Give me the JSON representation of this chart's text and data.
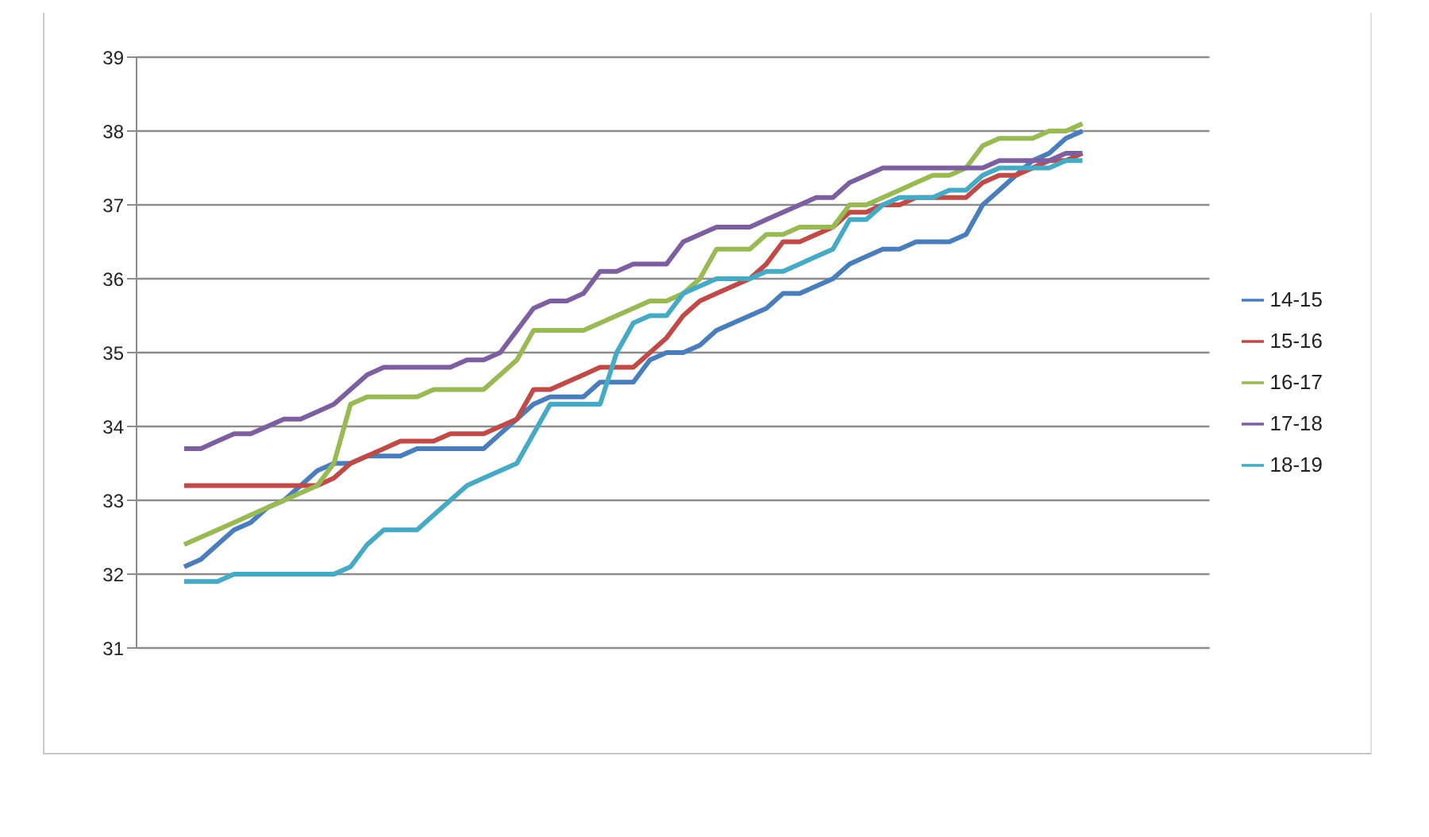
{
  "chart_data": {
    "type": "line",
    "categories": [
      null,
      null,
      null,
      null,
      null,
      null,
      null,
      null,
      null,
      null,
      null,
      null,
      null,
      null,
      null,
      null,
      null,
      null,
      null,
      null,
      null,
      null,
      null,
      null,
      null,
      null,
      null,
      null,
      null,
      null,
      null,
      null,
      null,
      null,
      null,
      null,
      null,
      null,
      null,
      null,
      null,
      null,
      null,
      null,
      null,
      null,
      null,
      null,
      null,
      null,
      null,
      null,
      null,
      null,
      null
    ],
    "series": [
      {
        "name": "14-15",
        "color": "#4a7ebb",
        "values": [
          32.1,
          32.2,
          32.4,
          32.6,
          32.7,
          32.9,
          33.0,
          33.2,
          33.4,
          33.5,
          33.5,
          33.6,
          33.6,
          33.6,
          33.7,
          33.7,
          33.7,
          33.7,
          33.7,
          33.9,
          34.1,
          34.3,
          34.4,
          34.4,
          34.4,
          34.6,
          34.6,
          34.6,
          34.9,
          35.0,
          35.0,
          35.1,
          35.3,
          35.4,
          35.5,
          35.6,
          35.8,
          35.8,
          35.9,
          36.0,
          36.2,
          36.3,
          36.4,
          36.4,
          36.5,
          36.5,
          36.5,
          36.6,
          37.0,
          37.2,
          37.4,
          37.6,
          37.7,
          37.9,
          38.0
        ]
      },
      {
        "name": "15-16",
        "color": "#be4b48",
        "values": [
          33.2,
          33.2,
          33.2,
          33.2,
          33.2,
          33.2,
          33.2,
          33.2,
          33.2,
          33.3,
          33.5,
          33.6,
          33.7,
          33.8,
          33.8,
          33.8,
          33.9,
          33.9,
          33.9,
          34.0,
          34.1,
          34.5,
          34.5,
          34.6,
          34.7,
          34.8,
          34.8,
          34.8,
          35.0,
          35.2,
          35.5,
          35.7,
          35.8,
          35.9,
          36.0,
          36.2,
          36.5,
          36.5,
          36.6,
          36.7,
          36.9,
          36.9,
          37.0,
          37.0,
          37.1,
          37.1,
          37.1,
          37.1,
          37.3,
          37.4,
          37.4,
          37.5,
          37.6,
          37.6,
          37.7
        ]
      },
      {
        "name": "16-17",
        "color": "#98b954",
        "values": [
          32.4,
          32.5,
          32.6,
          32.7,
          32.8,
          32.9,
          33.0,
          33.1,
          33.2,
          33.5,
          34.3,
          34.4,
          34.4,
          34.4,
          34.4,
          34.5,
          34.5,
          34.5,
          34.5,
          34.7,
          34.9,
          35.3,
          35.3,
          35.3,
          35.3,
          35.4,
          35.5,
          35.6,
          35.7,
          35.7,
          35.8,
          36.0,
          36.4,
          36.4,
          36.4,
          36.6,
          36.6,
          36.7,
          36.7,
          36.7,
          37.0,
          37.0,
          37.1,
          37.2,
          37.3,
          37.4,
          37.4,
          37.5,
          37.8,
          37.9,
          37.9,
          37.9,
          38.0,
          38.0,
          38.1
        ]
      },
      {
        "name": "17-18",
        "color": "#7d5fa0",
        "values": [
          33.7,
          33.7,
          33.8,
          33.9,
          33.9,
          34.0,
          34.1,
          34.1,
          34.2,
          34.3,
          34.5,
          34.7,
          34.8,
          34.8,
          34.8,
          34.8,
          34.8,
          34.9,
          34.9,
          35.0,
          35.3,
          35.6,
          35.7,
          35.7,
          35.8,
          36.1,
          36.1,
          36.2,
          36.2,
          36.2,
          36.5,
          36.6,
          36.7,
          36.7,
          36.7,
          36.8,
          36.9,
          37.0,
          37.1,
          37.1,
          37.3,
          37.4,
          37.5,
          37.5,
          37.5,
          37.5,
          37.5,
          37.5,
          37.5,
          37.6,
          37.6,
          37.6,
          37.6,
          37.7,
          37.7
        ]
      },
      {
        "name": "18-19",
        "color": "#46aac5",
        "values": [
          31.9,
          31.9,
          31.9,
          32.0,
          32.0,
          32.0,
          32.0,
          32.0,
          32.0,
          32.0,
          32.1,
          32.4,
          32.6,
          32.6,
          32.6,
          32.8,
          33.0,
          33.2,
          33.3,
          33.4,
          33.5,
          33.9,
          34.3,
          34.3,
          34.3,
          34.3,
          35.0,
          35.4,
          35.5,
          35.5,
          35.8,
          35.9,
          36.0,
          36.0,
          36.0,
          36.1,
          36.1,
          36.2,
          36.3,
          36.4,
          36.8,
          36.8,
          37.0,
          37.1,
          37.1,
          37.1,
          37.2,
          37.2,
          37.4,
          37.5,
          37.5,
          37.5,
          37.5,
          37.6,
          37.6
        ]
      }
    ],
    "ylim": [
      31,
      39
    ],
    "yticks": [
      31,
      32,
      33,
      34,
      35,
      36,
      37,
      38,
      39
    ],
    "grid": "y",
    "legend": "right",
    "tick_labels": "y",
    "marker": "none",
    "line_style": "solid"
  }
}
